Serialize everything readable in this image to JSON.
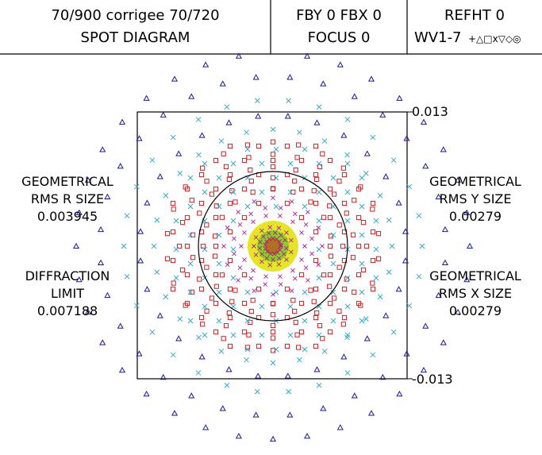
{
  "header": {
    "title_line1": "70/900  corrigee 70/720",
    "title_line2": "SPOT DIAGRAM",
    "field_line1": "FBY 0 FBX 0",
    "field_line2": "FOCUS 0",
    "ref_line1": "REFHT 0",
    "ref_line2": "WV1-7",
    "ref_symbols": "+△□x▽◇◎"
  },
  "left_panel": {
    "rms_r_line1": "GEOMETRICAL",
    "rms_r_line2": "RMS R SIZE",
    "rms_r_value": "0.003945",
    "diff_line1": "DIFFRACTION",
    "diff_line2": "LIMIT",
    "diff_value": "0.007188"
  },
  "right_panel": {
    "rms_y_line1": "GEOMETRICAL",
    "rms_y_line2": "RMS Y SIZE",
    "rms_y_value": "0.00279",
    "rms_x_line1": "GEOMETRICAL",
    "rms_x_line2": "RMS X SIZE",
    "rms_x_value": "0.00279"
  },
  "scale": {
    "top": "0.013",
    "bottom": "-0.013"
  },
  "colors": {
    "line": "#000000",
    "triangle": "#1a1a9a",
    "square": "#cc2222",
    "cross": "#33aacc",
    "diamond": "#aa2299",
    "core_yellow": "#e0e000",
    "core_green": "#44bb22"
  }
}
